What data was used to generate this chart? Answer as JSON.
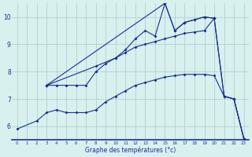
{
  "xlabel": "Graphe des températures (°c)",
  "xlim": [
    -0.5,
    23.5
  ],
  "ylim": [
    5.5,
    10.5
  ],
  "yticks": [
    6,
    7,
    8,
    9,
    10
  ],
  "xticks": [
    0,
    1,
    2,
    3,
    4,
    5,
    6,
    7,
    8,
    9,
    10,
    11,
    12,
    13,
    14,
    15,
    16,
    17,
    18,
    19,
    20,
    21,
    22,
    23
  ],
  "background_color": "#d8f0ee",
  "grid_color": "#a8cccc",
  "line_color": "#1a3090",
  "series": [
    {
      "x": [
        0,
        2,
        3,
        4,
        5,
        6,
        7,
        8,
        9,
        10,
        11,
        12,
        13,
        14,
        15,
        16,
        17,
        18,
        19,
        20,
        21,
        22,
        23
      ],
      "y": [
        5.9,
        6.2,
        6.5,
        6.6,
        6.5,
        6.5,
        6.5,
        6.6,
        6.9,
        7.1,
        7.3,
        7.5,
        7.6,
        7.7,
        7.8,
        7.85,
        7.9,
        7.9,
        7.9,
        7.85,
        7.1,
        7.0,
        5.55
      ]
    },
    {
      "x": [
        3,
        4,
        5,
        6,
        7,
        8,
        9,
        10,
        11,
        12,
        13,
        14,
        15,
        16,
        17,
        18,
        19,
        20,
        21,
        22,
        23
      ],
      "y": [
        7.5,
        7.5,
        7.5,
        7.5,
        7.5,
        8.0,
        8.3,
        8.5,
        8.7,
        8.9,
        9.0,
        9.1,
        9.2,
        9.3,
        9.4,
        9.45,
        9.5,
        9.95,
        7.1,
        7.0,
        5.55
      ]
    },
    {
      "x": [
        3,
        8,
        10,
        11,
        12,
        13,
        14,
        15,
        16,
        17,
        18,
        19,
        20,
        21,
        22,
        23
      ],
      "y": [
        7.5,
        8.2,
        8.5,
        8.8,
        9.2,
        9.5,
        9.3,
        10.5,
        9.5,
        9.8,
        9.9,
        10.0,
        9.95,
        7.1,
        7.0,
        5.55
      ]
    },
    {
      "x": [
        3,
        15,
        16,
        17,
        18,
        19,
        20
      ],
      "y": [
        7.5,
        10.5,
        9.5,
        9.8,
        9.9,
        10.0,
        9.95
      ]
    }
  ]
}
